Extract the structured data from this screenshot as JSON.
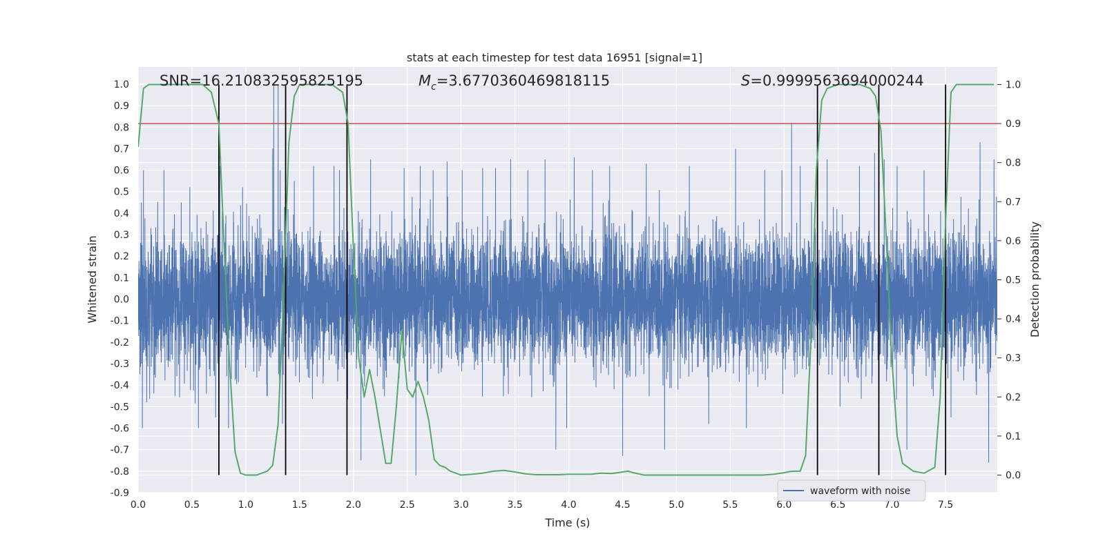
{
  "chart_data": {
    "type": "line",
    "title": "stats at each timestep for test data 16951 [signal=1]",
    "xlabel": "Time (s)",
    "ylabel": "Whitened strain",
    "y2label": "Detection probability",
    "xlim": [
      0.0,
      7.98
    ],
    "ylim": [
      -0.9,
      1.08
    ],
    "y2lim": [
      -0.045,
      1.045
    ],
    "x_ticks": [
      "0.0",
      "0.5",
      "1.0",
      "1.5",
      "2.0",
      "2.5",
      "3.0",
      "3.5",
      "4.0",
      "4.5",
      "5.0",
      "5.5",
      "6.0",
      "6.5",
      "7.0",
      "7.5"
    ],
    "y_ticks": [
      "-0.9",
      "-0.8",
      "-0.7",
      "-0.6",
      "-0.5",
      "-0.4",
      "-0.3",
      "-0.2",
      "-0.1",
      "0.0",
      "0.1",
      "0.2",
      "0.3",
      "0.4",
      "0.5",
      "0.6",
      "0.7",
      "0.8",
      "0.9",
      "1.0"
    ],
    "y2_ticks": [
      "0.0",
      "0.1",
      "0.2",
      "0.3",
      "0.4",
      "0.5",
      "0.6",
      "0.7",
      "0.8",
      "0.9",
      "1.0"
    ],
    "grid": true,
    "legend": {
      "entries": [
        "waveform with noise"
      ],
      "location": "lower-right"
    },
    "annotations": {
      "snr": "SNR=16.210832595825195",
      "mc_prefix": "M",
      "mc_sub": "c",
      "mc_value": "=3.6770360469818115",
      "s_prefix": "S",
      "s_value": "=0.9999563694000244"
    },
    "threshold": {
      "axis": "right",
      "value": 0.9,
      "color": "#c44e52"
    },
    "vertical_lines": {
      "x": [
        0.75,
        1.37,
        1.94,
        6.31,
        6.88,
        7.5
      ],
      "ymin": 0.0,
      "ymax": 1.0,
      "axis": "right",
      "color": "#000000"
    },
    "waveform": {
      "name": "waveform with noise",
      "color": "#4c72b0",
      "samples": 8192,
      "typical_envelope": 0.45,
      "spikes": [
        {
          "x": 0.03,
          "y": 0.45
        },
        {
          "x": 0.04,
          "y": -0.6
        },
        {
          "x": 0.05,
          "y": 0.6
        },
        {
          "x": 0.08,
          "y": -0.48
        },
        {
          "x": 0.24,
          "y": 0.6
        },
        {
          "x": 0.4,
          "y": 0.45
        },
        {
          "x": 0.48,
          "y": 0.52
        },
        {
          "x": 0.56,
          "y": -0.6
        },
        {
          "x": 0.72,
          "y": -0.55
        },
        {
          "x": 0.76,
          "y": 0.62
        },
        {
          "x": 0.84,
          "y": -0.6
        },
        {
          "x": 0.97,
          "y": 0.52
        },
        {
          "x": 1.2,
          "y": -0.45
        },
        {
          "x": 1.25,
          "y": 0.7
        },
        {
          "x": 1.26,
          "y": 1.0
        },
        {
          "x": 1.3,
          "y": 1.0
        },
        {
          "x": 1.32,
          "y": 0.6
        },
        {
          "x": 1.34,
          "y": -0.58
        },
        {
          "x": 1.45,
          "y": 0.55
        },
        {
          "x": 1.63,
          "y": 0.62
        },
        {
          "x": 1.82,
          "y": 0.62
        },
        {
          "x": 1.87,
          "y": 0.6
        },
        {
          "x": 2.07,
          "y": -0.75
        },
        {
          "x": 2.16,
          "y": 0.65
        },
        {
          "x": 2.47,
          "y": 0.61
        },
        {
          "x": 2.58,
          "y": -0.82
        },
        {
          "x": 2.62,
          "y": 0.62
        },
        {
          "x": 2.74,
          "y": 0.6
        },
        {
          "x": 2.87,
          "y": 0.64
        },
        {
          "x": 3.01,
          "y": 0.6
        },
        {
          "x": 3.2,
          "y": 0.61
        },
        {
          "x": 3.32,
          "y": 0.61
        },
        {
          "x": 3.46,
          "y": 0.65
        },
        {
          "x": 3.62,
          "y": 0.6
        },
        {
          "x": 3.78,
          "y": 0.65
        },
        {
          "x": 3.88,
          "y": -0.7
        },
        {
          "x": 3.98,
          "y": -0.6
        },
        {
          "x": 4.05,
          "y": 0.66
        },
        {
          "x": 4.22,
          "y": 0.6
        },
        {
          "x": 4.38,
          "y": 0.62
        },
        {
          "x": 4.5,
          "y": -0.73
        },
        {
          "x": 4.72,
          "y": 0.63
        },
        {
          "x": 4.89,
          "y": -0.7
        },
        {
          "x": 5.12,
          "y": 0.62
        },
        {
          "x": 5.3,
          "y": -0.58
        },
        {
          "x": 5.55,
          "y": 0.7
        },
        {
          "x": 5.65,
          "y": -0.6
        },
        {
          "x": 5.82,
          "y": 0.6
        },
        {
          "x": 5.98,
          "y": 0.6
        },
        {
          "x": 6.07,
          "y": 0.82
        },
        {
          "x": 6.15,
          "y": 0.62
        },
        {
          "x": 6.4,
          "y": 0.65
        },
        {
          "x": 6.52,
          "y": -0.5
        },
        {
          "x": 6.7,
          "y": 0.62
        },
        {
          "x": 6.84,
          "y": 0.68
        },
        {
          "x": 6.93,
          "y": 0.65
        },
        {
          "x": 7.05,
          "y": 0.62
        },
        {
          "x": 7.14,
          "y": -0.7
        },
        {
          "x": 7.3,
          "y": 0.6
        },
        {
          "x": 7.55,
          "y": -0.55
        },
        {
          "x": 7.82,
          "y": 0.73
        },
        {
          "x": 7.9,
          "y": -0.76
        },
        {
          "x": 7.95,
          "y": 0.65
        }
      ]
    },
    "detection_probability": {
      "color": "#55a868",
      "axis": "right",
      "x": [
        0.0,
        0.05,
        0.1,
        0.2,
        0.3,
        0.4,
        0.5,
        0.6,
        0.68,
        0.75,
        0.8,
        0.85,
        0.9,
        0.95,
        1.0,
        1.1,
        1.2,
        1.25,
        1.3,
        1.35,
        1.4,
        1.45,
        1.5,
        1.6,
        1.7,
        1.8,
        1.85,
        1.9,
        1.95,
        2.0,
        2.05,
        2.1,
        2.15,
        2.2,
        2.3,
        2.35,
        2.4,
        2.45,
        2.5,
        2.55,
        2.6,
        2.65,
        2.7,
        2.75,
        2.8,
        2.85,
        2.9,
        3.0,
        3.1,
        3.2,
        3.3,
        3.4,
        3.5,
        3.6,
        3.7,
        3.8,
        3.9,
        4.0,
        4.1,
        4.2,
        4.3,
        4.4,
        4.5,
        4.55,
        4.6,
        4.7,
        4.8,
        4.9,
        5.0,
        5.2,
        5.4,
        5.6,
        5.8,
        5.9,
        6.0,
        6.05,
        6.1,
        6.15,
        6.2,
        6.25,
        6.3,
        6.35,
        6.4,
        6.5,
        6.6,
        6.7,
        6.8,
        6.85,
        6.9,
        6.95,
        7.0,
        7.05,
        7.1,
        7.15,
        7.2,
        7.3,
        7.4,
        7.45,
        7.5,
        7.55,
        7.6,
        7.65,
        7.7,
        7.8,
        7.9,
        7.95
      ],
      "y": [
        0.84,
        0.99,
        1.0,
        1.0,
        1.0,
        1.0,
        1.0,
        1.0,
        0.98,
        0.9,
        0.58,
        0.28,
        0.06,
        0.005,
        0.0,
        0.0,
        0.01,
        0.025,
        0.13,
        0.45,
        0.85,
        0.97,
        1.0,
        1.0,
        1.0,
        1.0,
        0.99,
        0.98,
        0.9,
        0.58,
        0.3,
        0.2,
        0.27,
        0.2,
        0.03,
        0.03,
        0.18,
        0.37,
        0.22,
        0.2,
        0.24,
        0.2,
        0.14,
        0.04,
        0.025,
        0.02,
        0.01,
        0.0,
        0.002,
        0.005,
        0.01,
        0.012,
        0.008,
        0.003,
        0.001,
        0.001,
        0.001,
        0.002,
        0.002,
        0.002,
        0.005,
        0.004,
        0.008,
        0.01,
        0.006,
        0.0,
        0.0,
        0.0,
        0.0,
        0.0,
        0.0,
        0.0,
        0.0,
        0.002,
        0.006,
        0.009,
        0.01,
        0.01,
        0.05,
        0.35,
        0.78,
        0.96,
        0.99,
        1.0,
        1.0,
        1.0,
        0.99,
        0.97,
        0.88,
        0.6,
        0.3,
        0.1,
        0.03,
        0.02,
        0.01,
        0.005,
        0.02,
        0.2,
        0.65,
        0.98,
        1.0,
        1.0,
        1.0,
        1.0,
        1.0,
        1.0
      ]
    }
  }
}
